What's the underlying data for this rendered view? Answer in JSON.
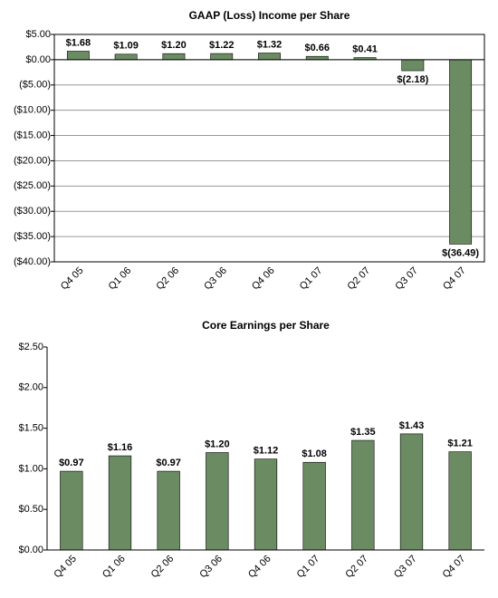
{
  "chart_data": [
    {
      "type": "bar",
      "title": "GAAP (Loss) Income per Share",
      "categories": [
        "Q4 05",
        "Q1 06",
        "Q2 06",
        "Q3 06",
        "Q4 06",
        "Q1 07",
        "Q2 07",
        "Q3 07",
        "Q4 07"
      ],
      "values": [
        1.68,
        1.09,
        1.2,
        1.22,
        1.32,
        0.66,
        0.41,
        -2.18,
        -36.49
      ],
      "value_labels": [
        "$1.68",
        "$1.09",
        "$1.20",
        "$1.22",
        "$1.32",
        "$0.66",
        "$0.41",
        "$(2.18)",
        "$(36.49)"
      ],
      "color": "#6b8c63",
      "ylim": [
        -40,
        5
      ],
      "yticks": [
        {
          "value": 5,
          "label": "$5.00"
        },
        {
          "value": 0,
          "label": "$0.00"
        },
        {
          "value": -5,
          "label": "($5.00)"
        },
        {
          "value": -10,
          "label": "($10.00)"
        },
        {
          "value": -15,
          "label": "($15.00)"
        },
        {
          "value": -20,
          "label": "($20.00)"
        },
        {
          "value": -25,
          "label": "($25.00)"
        },
        {
          "value": -30,
          "label": "($30.00)"
        },
        {
          "value": -35,
          "label": "($35.00)"
        },
        {
          "value": -40,
          "label": "($40.00)"
        }
      ],
      "grid": true
    },
    {
      "type": "bar",
      "title": "Core Earnings per Share",
      "categories": [
        "Q4 05",
        "Q1 06",
        "Q2 06",
        "Q3 06",
        "Q4 06",
        "Q1 07",
        "Q2 07",
        "Q3 07",
        "Q4 07"
      ],
      "values": [
        0.97,
        1.16,
        0.97,
        1.2,
        1.12,
        1.08,
        1.35,
        1.43,
        1.21
      ],
      "value_labels": [
        "$0.97",
        "$1.16",
        "$0.97",
        "$1.20",
        "$1.12",
        "$1.08",
        "$1.35",
        "$1.43",
        "$1.21"
      ],
      "color": "#6b8c63",
      "ylim": [
        0,
        2.5
      ],
      "yticks": [
        {
          "value": 0,
          "label": "$0.00"
        },
        {
          "value": 0.5,
          "label": "$0.50"
        },
        {
          "value": 1,
          "label": "$1.00"
        },
        {
          "value": 1.5,
          "label": "$1.50"
        },
        {
          "value": 2,
          "label": "$2.00"
        },
        {
          "value": 2.5,
          "label": "$2.50"
        }
      ],
      "grid": false
    }
  ]
}
